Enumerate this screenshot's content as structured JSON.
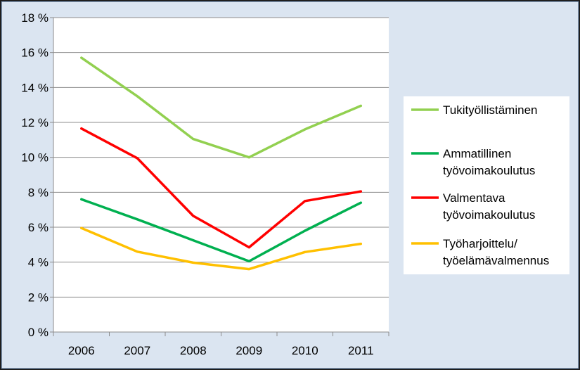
{
  "chart_data": {
    "type": "line",
    "title": "",
    "xlabel": "",
    "ylabel": "",
    "categories": [
      "2006",
      "2007",
      "2008",
      "2009",
      "2010",
      "2011"
    ],
    "ylim": [
      0,
      18
    ],
    "y_ticks": [
      0,
      2,
      4,
      6,
      8,
      10,
      12,
      14,
      16,
      18
    ],
    "y_tick_suffix": " %",
    "grid": "horizontal",
    "legend_position": "right",
    "series": [
      {
        "name": "Tukityöllistäminen",
        "color": "#92d050",
        "values": [
          15.7,
          13.5,
          11.05,
          10.0,
          11.6,
          12.95
        ]
      },
      {
        "name": "Ammatillinen työvoimakoulutus",
        "color": "#00b050",
        "values": [
          7.6,
          6.45,
          5.25,
          4.05,
          5.8,
          7.4
        ]
      },
      {
        "name": "Valmentava työvoimakoulutus",
        "color": "#ff0000",
        "values": [
          11.65,
          9.95,
          6.65,
          4.85,
          7.5,
          8.05
        ]
      },
      {
        "name": "Työharjoittelu/ työelämävalmennus",
        "color": "#ffc000",
        "values": [
          5.95,
          4.6,
          3.97,
          3.6,
          4.58,
          5.05
        ]
      }
    ],
    "legend_lines": [
      [
        "Tukityöllistäminen"
      ],
      [
        "Ammatillinen",
        "työvoimakoulutus"
      ],
      [
        "Valmentava",
        "työvoimakoulutus"
      ],
      [
        "Työharjoittelu/",
        "työelämävalmennus"
      ]
    ]
  }
}
